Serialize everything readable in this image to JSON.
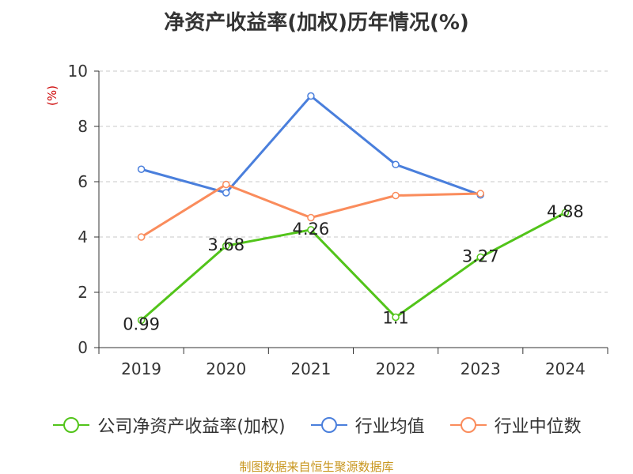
{
  "chart_data": {
    "type": "line",
    "title": "净资产收益率(加权)历年情况(%)",
    "ylabel": "(%)",
    "ylim": [
      0,
      10
    ],
    "yticks": [
      0,
      2,
      4,
      6,
      8,
      10
    ],
    "grid": true,
    "legend_position": "bottom",
    "categories": [
      "2019",
      "2020",
      "2021",
      "2022",
      "2023",
      "2024"
    ],
    "series": [
      {
        "name": "公司净资产收益率(加权)",
        "color": "#52c41a",
        "values": [
          0.99,
          3.68,
          4.26,
          1.1,
          3.27,
          4.88
        ],
        "data_labels": [
          "0.99",
          "3.68",
          "4.26",
          "1.1",
          "3.27",
          "4.88"
        ]
      },
      {
        "name": "行业均值",
        "color": "#4a7fdc",
        "values": [
          6.45,
          5.6,
          9.1,
          6.62,
          5.52,
          null
        ]
      },
      {
        "name": "行业中位数",
        "color": "#fa8c5c",
        "values": [
          4.0,
          5.9,
          4.7,
          5.5,
          5.57,
          null
        ]
      }
    ]
  },
  "source": "制图数据来自恒生聚源数据库"
}
